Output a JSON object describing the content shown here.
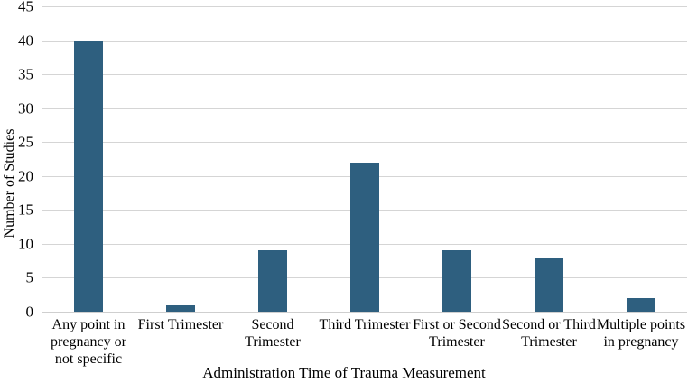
{
  "chart_data": {
    "type": "bar",
    "title": "",
    "xlabel": "Administration Time of Trauma Measurement",
    "ylabel": "Number of Studies",
    "categories": [
      "Any point in pregnancy or not specific",
      "First Trimester",
      "Second Trimester",
      "Third Trimester",
      "First or Second Trimester",
      "Second or Third Trimester",
      "Multiple points in pregnancy"
    ],
    "category_display": [
      "Any point in\npregnancy or\nnot specific",
      "First Trimester",
      "Second\nTrimester",
      "Third Trimester",
      "First or Second\nTrimester",
      "Second or Third\nTrimester",
      "Multiple points\nin pregnancy"
    ],
    "values": [
      40,
      1,
      9,
      22,
      9,
      8,
      2
    ],
    "ylim": [
      0,
      45
    ],
    "yticks": [
      0,
      5,
      10,
      15,
      20,
      25,
      30,
      35,
      40,
      45
    ],
    "grid": true,
    "legend": "none",
    "bar_color": "#2E5F7F",
    "gridline_color": "#D5D5D5",
    "axis_line_color": "#CFCFCF",
    "text_color": "#000000",
    "background_color": "#FFFFFF"
  }
}
